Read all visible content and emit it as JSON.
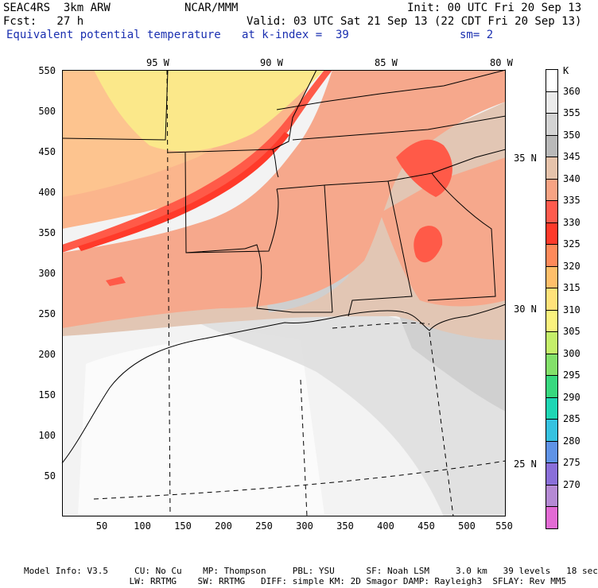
{
  "header": {
    "line1_left": "SEAC4RS  3km ARW",
    "line1_mid": "NCAR/MMM",
    "line1_right": "Init: 00 UTC Fri 20 Sep 13",
    "line2_left": "Fcst:   27 h",
    "line2_right": "Valid: 03 UTC Sat 21 Sep 13 (22 CDT Fri 20 Sep 13)",
    "line3_field": "Equivalent potential temperature",
    "line3_level": "at k-index =  39",
    "line3_sm": "sm= 2"
  },
  "axes": {
    "y_ticks": [
      "550",
      "500",
      "450",
      "400",
      "350",
      "300",
      "250",
      "200",
      "150",
      "100",
      "50"
    ],
    "x_ticks": [
      "50",
      "100",
      "150",
      "200",
      "250",
      "300",
      "350",
      "400",
      "450",
      "500",
      "550"
    ]
  },
  "lon_labels": [
    "95 W",
    "90 W",
    "85 W",
    "80 W"
  ],
  "lat_labels": [
    "35 N",
    "30 N",
    "25 N"
  ],
  "colorbar": {
    "unit": "K",
    "levels": [
      {
        "label": "360",
        "color": "#ffffff"
      },
      {
        "label": "355",
        "color": "#ebebeb"
      },
      {
        "label": "350",
        "color": "#d3d3d3"
      },
      {
        "label": "345",
        "color": "#b9b9b9"
      },
      {
        "label": "340",
        "color": "#e6c3ab"
      },
      {
        "label": "335",
        "color": "#f7a383"
      },
      {
        "label": "330",
        "color": "#ff5b4d"
      },
      {
        "label": "325",
        "color": "#ff3a2a"
      },
      {
        "label": "320",
        "color": "#ff8a5a"
      },
      {
        "label": "315",
        "color": "#ffbf6a"
      },
      {
        "label": "310",
        "color": "#ffe27a"
      },
      {
        "label": "305",
        "color": "#fbf27e"
      },
      {
        "label": "300",
        "color": "#c5ef6a"
      },
      {
        "label": "295",
        "color": "#83e06a"
      },
      {
        "label": "290",
        "color": "#38d87f"
      },
      {
        "label": "285",
        "color": "#1ed6b4"
      },
      {
        "label": "280",
        "color": "#36c2e0"
      },
      {
        "label": "275",
        "color": "#5f93e6"
      },
      {
        "label": "270",
        "color": "#8a6fd9"
      },
      {
        "label": "",
        "color": "#b58ad4"
      },
      {
        "label": "",
        "color": "#e26bd4"
      }
    ]
  },
  "footer": {
    "line1": "Model Info: V3.5     CU: No Cu    MP: Thompson     PBL: YSU      SF: Noah LSM     3.0 km   39 levels   18 sec",
    "line2": "                    LW: RRTMG    SW: RRTMG   DIFF: simple KM: 2D Smagor DAMP: Rayleigh3  SFLAY: Rev MM5"
  },
  "colors": {
    "gulf": "#f3f3f3",
    "gulf_light": "#fbfbfb",
    "gulf_gray": "#dcdcdc",
    "mid_gray": "#cfcfcf",
    "tan": "#e2c6b4",
    "salmon": "#f6a88c",
    "orange": "#fbb58c",
    "light_orange": "#fdc48f",
    "yellow": "#fbe88a",
    "red": "#ff5a48",
    "dark_red": "#ff3a2a",
    "header_blue": "#1a2fb0"
  }
}
